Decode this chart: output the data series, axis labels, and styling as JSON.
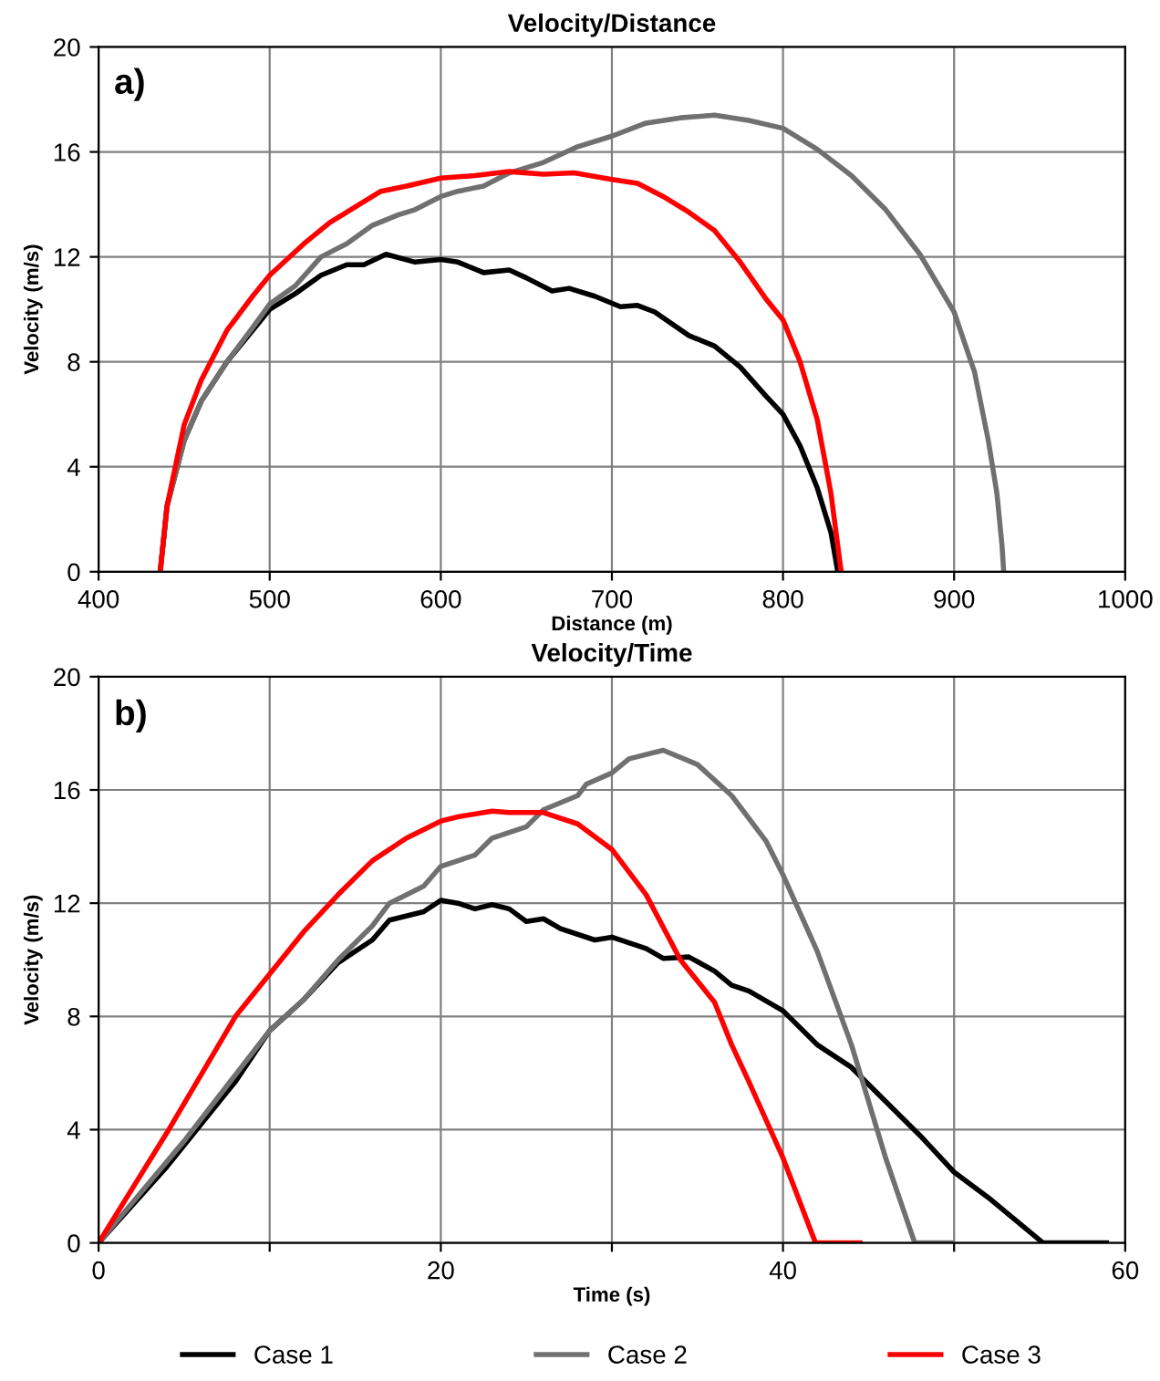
{
  "chart_data": [
    {
      "type": "line",
      "title": "Velocity/Distance",
      "xlabel": "Distance (m)",
      "ylabel": "Velocity (m/s)",
      "annotations": [
        "a)"
      ],
      "xlim": [
        400,
        1000
      ],
      "xticks": [
        400,
        500,
        600,
        700,
        800,
        900,
        1000
      ],
      "ylim": [
        0,
        20
      ],
      "yticks": [
        0,
        4,
        8,
        12,
        16,
        20
      ],
      "grid": true,
      "series": [
        {
          "color": "#000000",
          "x": [
            436,
            440,
            450,
            460,
            475,
            490,
            500,
            515,
            530,
            545,
            555,
            568,
            585,
            600,
            610,
            625,
            640,
            650,
            665,
            675,
            690,
            705,
            715,
            725,
            745,
            760,
            775,
            790,
            800,
            810,
            820,
            828,
            832
          ],
          "values": [
            0,
            2.5,
            5,
            6.5,
            8,
            9.2,
            10,
            10.6,
            11.3,
            11.7,
            11.7,
            12.1,
            11.8,
            11.9,
            11.8,
            11.4,
            11.5,
            11.2,
            10.7,
            10.8,
            10.5,
            10.1,
            10.15,
            9.9,
            9,
            8.6,
            7.8,
            6.7,
            6,
            4.8,
            3.2,
            1.5,
            0
          ]
        },
        {
          "color": "#707070",
          "x": [
            436,
            440,
            450,
            460,
            475,
            490,
            500,
            515,
            530,
            545,
            560,
            575,
            585,
            600,
            610,
            625,
            640,
            660,
            680,
            700,
            720,
            740,
            760,
            780,
            800,
            820,
            840,
            860,
            880,
            900,
            912,
            920,
            925,
            928,
            929
          ],
          "values": [
            0,
            2.5,
            5,
            6.5,
            8,
            9.3,
            10.2,
            10.9,
            12,
            12.5,
            13.2,
            13.6,
            13.8,
            14.3,
            14.5,
            14.7,
            15.2,
            15.6,
            16.2,
            16.6,
            17.1,
            17.3,
            17.4,
            17.2,
            16.9,
            16.1,
            15.1,
            13.8,
            12.1,
            9.9,
            7.6,
            5,
            3,
            1,
            0
          ]
        },
        {
          "color": "#ff0000",
          "x": [
            436,
            440,
            450,
            460,
            475,
            490,
            500,
            520,
            535,
            550,
            565,
            580,
            600,
            620,
            640,
            660,
            678,
            700,
            715,
            730,
            745,
            760,
            775,
            790,
            800,
            810,
            820,
            828,
            832,
            834
          ],
          "values": [
            0,
            2.5,
            5.6,
            7.3,
            9.2,
            10.5,
            11.3,
            12.5,
            13.3,
            13.9,
            14.5,
            14.7,
            15,
            15.1,
            15.25,
            15.15,
            15.2,
            14.95,
            14.8,
            14.3,
            13.7,
            13,
            11.8,
            10.4,
            9.6,
            8,
            5.8,
            3,
            1,
            0
          ]
        }
      ]
    },
    {
      "type": "line",
      "title": "Velocity/Time",
      "xlabel": "Time (s)",
      "ylabel": "Velocity (m/s)",
      "annotations": [
        "b)"
      ],
      "xlim": [
        0,
        60
      ],
      "xticks": [
        0,
        {
          "value": 10,
          "label": null
        },
        20,
        {
          "value": 30,
          "label": null
        },
        40,
        {
          "value": 50,
          "label": null
        },
        60
      ],
      "ylim": [
        0,
        20
      ],
      "yticks": [
        0,
        4,
        8,
        12,
        16,
        20
      ],
      "grid": true,
      "legend": "bottom",
      "series": [
        {
          "name": "Case 1",
          "color": "#000000",
          "x": [
            0,
            4,
            8,
            10,
            12,
            14,
            16,
            17,
            19,
            20,
            21,
            22,
            23,
            24,
            25,
            26,
            27,
            29,
            30,
            32,
            33,
            34.5,
            36,
            37,
            38,
            40,
            42,
            44,
            46,
            48,
            50,
            52,
            55.2,
            58.9
          ],
          "values": [
            0,
            2.7,
            5.7,
            7.5,
            8.6,
            9.9,
            10.7,
            11.4,
            11.7,
            12.1,
            12,
            11.8,
            11.95,
            11.8,
            11.35,
            11.45,
            11.1,
            10.7,
            10.8,
            10.4,
            10.05,
            10.1,
            9.6,
            9.1,
            8.9,
            8.2,
            7,
            6.2,
            5,
            3.8,
            2.5,
            1.6,
            0,
            0
          ]
        },
        {
          "name": "Case 2",
          "color": "#707070",
          "x": [
            0,
            5,
            10,
            12,
            14,
            16,
            17,
            19,
            20,
            22,
            23,
            25,
            26,
            28,
            28.5,
            30,
            31,
            33,
            35,
            37,
            39,
            40,
            42,
            44,
            46,
            47.7,
            49.8
          ],
          "values": [
            0,
            3.6,
            7.5,
            8.6,
            10,
            11.2,
            12,
            12.6,
            13.3,
            13.7,
            14.3,
            14.7,
            15.3,
            15.8,
            16.2,
            16.6,
            17.1,
            17.4,
            16.9,
            15.8,
            14.2,
            13,
            10.3,
            7,
            3,
            0,
            0
          ]
        },
        {
          "name": "Case 3",
          "color": "#ff0000",
          "x": [
            0,
            4,
            8,
            10,
            12,
            14,
            16,
            18,
            20,
            21,
            23,
            24,
            26,
            28,
            30,
            32,
            34,
            36,
            37,
            38,
            40,
            41.9,
            44.5
          ],
          "values": [
            0,
            3.9,
            8,
            9.5,
            11,
            12.3,
            13.5,
            14.3,
            14.9,
            15.05,
            15.25,
            15.2,
            15.2,
            14.8,
            13.9,
            12.3,
            10,
            8.5,
            7,
            5.7,
            3,
            0,
            0
          ]
        }
      ]
    }
  ]
}
